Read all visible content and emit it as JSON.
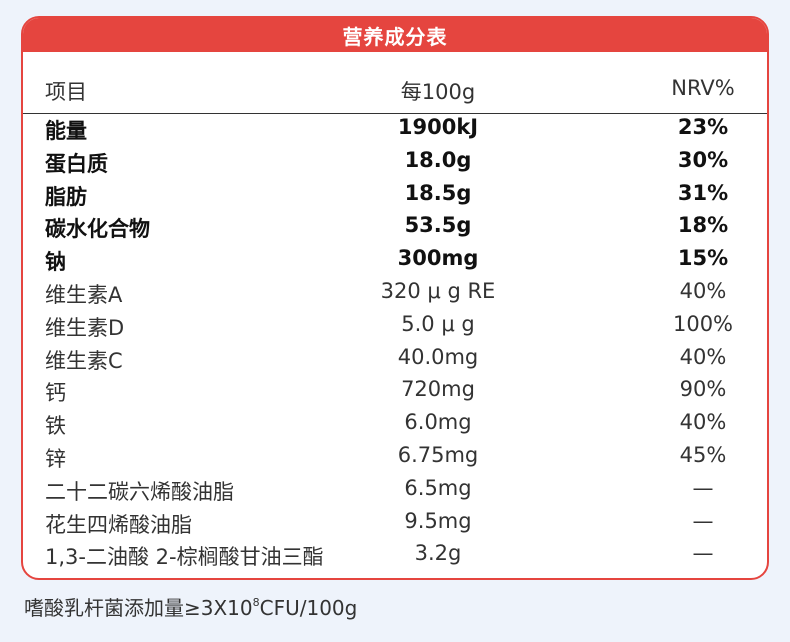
{
  "title": "营养成分表",
  "header": {
    "item": "项目",
    "per100g": "每100g",
    "nrv": "NRV%"
  },
  "rows": [
    {
      "name": "能量",
      "value": "1900kJ",
      "nrv": "23%",
      "bold": true
    },
    {
      "name": "蛋白质",
      "value": "18.0g",
      "nrv": "30%",
      "bold": true
    },
    {
      "name": "脂肪",
      "value": "18.5g",
      "nrv": "31%",
      "bold": true
    },
    {
      "name": "碳水化合物",
      "value": "53.5g",
      "nrv": "18%",
      "bold": true
    },
    {
      "name": "钠",
      "value": "300mg",
      "nrv": "15%",
      "bold": true
    },
    {
      "name": "维生素A",
      "value": "320 μ g RE",
      "nrv": "40%",
      "bold": false
    },
    {
      "name": "维生素D",
      "value": "5.0 μ g",
      "nrv": "100%",
      "bold": false
    },
    {
      "name": "维生素C",
      "value": "40.0mg",
      "nrv": "40%",
      "bold": false
    },
    {
      "name": "钙",
      "value": "720mg",
      "nrv": "90%",
      "bold": false
    },
    {
      "name": "铁",
      "value": "6.0mg",
      "nrv": "40%",
      "bold": false
    },
    {
      "name": "锌",
      "value": "6.75mg",
      "nrv": "45%",
      "bold": false
    },
    {
      "name": "二十二碳六烯酸油脂",
      "value": "6.5mg",
      "nrv": "—",
      "bold": false
    },
    {
      "name": "花生四烯酸油脂",
      "value": "9.5mg",
      "nrv": "—",
      "bold": false
    },
    {
      "name": "1,3-二油酸 2-棕榈酸甘油三酯",
      "value": "3.2g",
      "nrv": "—",
      "bold": false
    }
  ],
  "footer": {
    "text": "嗜酸乳杆菌添加量≥3X10",
    "exponent": "8",
    "unit": "CFU/100g"
  }
}
